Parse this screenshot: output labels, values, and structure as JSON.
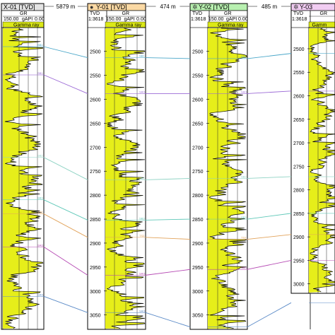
{
  "colors": {
    "gr_fill": "#e6ee1a",
    "gr_curve": "#000000",
    "gamma_bar": "#dbe817",
    "header_orange": "#fbd9a4",
    "header_green": "#b8f0b0",
    "header_purple": "#f1cdf2",
    "header_gray": "#e3e3e3",
    "frame": "#000000"
  },
  "spacings": [
    "5879 m",
    "474 m",
    "485 m"
  ],
  "wells": [
    {
      "id": "x01",
      "title": "X-01 [TVD]",
      "symbol": "",
      "tvd_label": "",
      "gr_label": "GR",
      "scale": "",
      "gr_min": "150.00",
      "gr_unit": "gAPI",
      "gr_max": "0.00",
      "track_label": "Gamma ray",
      "depth_ticks": [],
      "seed": 11,
      "depth_top": 2435,
      "depth_bottom": 3080
    },
    {
      "id": "y01",
      "title": "Y-01 [TVD]",
      "symbol": "●",
      "tvd_label": "TVD",
      "gr_label": "GR",
      "scale": "1:3618",
      "gr_min": "150.00",
      "gr_unit": "gAPI",
      "gr_max": "0.00",
      "track_label": "Gamma ray",
      "depth_ticks": [
        "2500",
        "2550",
        "2600",
        "2650",
        "2700",
        "2750",
        "2800",
        "2850",
        "2900",
        "2950",
        "3000",
        "3050"
      ],
      "seed": 23,
      "depth_top": 2465,
      "depth_bottom": 3080
    },
    {
      "id": "y02",
      "title": "Y-02 [TVD]",
      "symbol": "✲",
      "tvd_label": "TVD",
      "gr_label": "GR",
      "scale": "1:3618",
      "gr_min": "150.00",
      "gr_unit": "gAPI",
      "gr_max": "0.00",
      "track_label": "Gamma ray",
      "depth_ticks": [
        "2500",
        "2550",
        "2600",
        "2650",
        "2700",
        "2750",
        "2800",
        "2850",
        "2900",
        "2950",
        "3000",
        "3050"
      ],
      "seed": 37,
      "depth_top": 2465,
      "depth_bottom": 3080
    },
    {
      "id": "y03",
      "title": "Y-03",
      "symbol": "✲",
      "tvd_label": "TVD",
      "gr_label": "GR",
      "scale": "1:3618",
      "gr_min": "",
      "gr_unit": "",
      "gr_max": "",
      "track_label": "Gamm",
      "depth_ticks": [
        "2500",
        "2550",
        "2600",
        "2650",
        "2700",
        "2750",
        "2800",
        "2850",
        "2900",
        "2950",
        "3000"
      ],
      "seed": 53,
      "depth_top": 2470,
      "depth_bottom": 3020
    }
  ],
  "correlations": [
    {
      "color": "#4aa7c9",
      "depths": [
        2480,
        2513,
        2515,
        2510
      ],
      "labels": [
        "SB1",
        "SB1",
        "SB1",
        ""
      ]
    },
    {
      "color": "#9c6ad6",
      "depths": [
        2540,
        2588,
        2588,
        2590
      ],
      "labels": [
        "SB1",
        "SAI1",
        "SAI1",
        ""
      ]
    },
    {
      "color": "#8fd3c4",
      "depths": [
        2715,
        2768,
        2765,
        2772
      ],
      "labels": [
        "SB2",
        "SB2",
        "SB2",
        ""
      ]
    },
    {
      "color": "#5fc8b8",
      "depths": [
        2805,
        2852,
        2850,
        2850
      ],
      "labels": [
        "SB3",
        "SB3",
        "SB3",
        ""
      ]
    },
    {
      "color": "#e2a35b",
      "depths": [
        2835,
        2888,
        2892,
        2895
      ],
      "labels": [
        "TS3",
        "TS3",
        "TS3",
        ""
      ]
    },
    {
      "color": "#b64bb4",
      "depths": [
        2905,
        2967,
        2955,
        2950
      ],
      "labels": [
        "SAI1",
        "SAI1",
        "SAI1",
        ""
      ]
    },
    {
      "color": "#5a8ac7",
      "depths": [
        3010,
        3045,
        3075,
        3040
      ],
      "labels": [
        "SAI1",
        "SAI1",
        "",
        ""
      ]
    }
  ]
}
